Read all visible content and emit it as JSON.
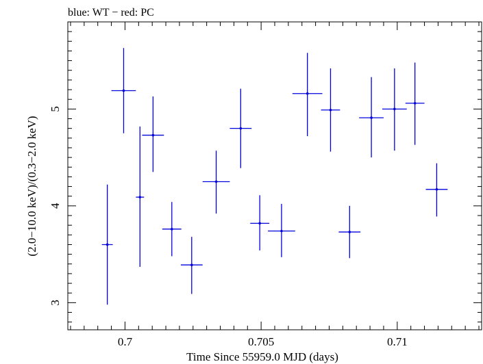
{
  "chart_data": {
    "type": "scatter",
    "title": "blue: WT − red: PC",
    "xlabel": "Time Since 55959.0 MJD (days)",
    "ylabel": "(2.0−10.0 keV)/(0.3−2.0 keV)",
    "xlim": [
      0.6979,
      0.7131
    ],
    "ylim": [
      2.72,
      5.9
    ],
    "xticks": [
      {
        "value": 0.7,
        "label": "0.7"
      },
      {
        "value": 0.705,
        "label": "0.705"
      },
      {
        "value": 0.71,
        "label": "0.71"
      }
    ],
    "yticks": [
      {
        "value": 3,
        "label": "3"
      },
      {
        "value": 4,
        "label": "4"
      },
      {
        "value": 5,
        "label": "5"
      }
    ],
    "grid": false,
    "series": [
      {
        "color": "#0000dd",
        "points": [
          {
            "x": 0.69935,
            "xerr": 0.0002,
            "y": 3.6,
            "ylo": 2.98,
            "yhi": 4.22
          },
          {
            "x": 0.69995,
            "xerr": 0.00045,
            "y": 5.19,
            "ylo": 4.75,
            "yhi": 5.63
          },
          {
            "x": 0.70055,
            "xerr": 0.00015,
            "y": 4.09,
            "ylo": 3.37,
            "yhi": 4.82
          },
          {
            "x": 0.70103,
            "xerr": 0.0004,
            "y": 4.73,
            "ylo": 4.35,
            "yhi": 5.13
          },
          {
            "x": 0.70172,
            "xerr": 0.00035,
            "y": 3.76,
            "ylo": 3.48,
            "yhi": 4.04
          },
          {
            "x": 0.70245,
            "xerr": 0.0004,
            "y": 3.39,
            "ylo": 3.09,
            "yhi": 3.68
          },
          {
            "x": 0.70335,
            "xerr": 0.0005,
            "y": 4.25,
            "ylo": 3.92,
            "yhi": 4.57
          },
          {
            "x": 0.70425,
            "xerr": 0.0004,
            "y": 4.8,
            "ylo": 4.39,
            "yhi": 5.21
          },
          {
            "x": 0.70495,
            "xerr": 0.00035,
            "y": 3.82,
            "ylo": 3.54,
            "yhi": 4.11
          },
          {
            "x": 0.70575,
            "xerr": 0.0005,
            "y": 3.74,
            "ylo": 3.47,
            "yhi": 4.02
          },
          {
            "x": 0.7067,
            "xerr": 0.00055,
            "y": 5.16,
            "ylo": 4.72,
            "yhi": 5.58
          },
          {
            "x": 0.70755,
            "xerr": 0.00035,
            "y": 4.99,
            "ylo": 4.56,
            "yhi": 5.42
          },
          {
            "x": 0.70825,
            "xerr": 0.0004,
            "y": 3.73,
            "ylo": 3.46,
            "yhi": 4.0
          },
          {
            "x": 0.70905,
            "xerr": 0.00045,
            "y": 4.91,
            "ylo": 4.5,
            "yhi": 5.33
          },
          {
            "x": 0.7099,
            "xerr": 0.00045,
            "y": 5.0,
            "ylo": 4.57,
            "yhi": 5.42
          },
          {
            "x": 0.71065,
            "xerr": 0.00035,
            "y": 5.06,
            "ylo": 4.63,
            "yhi": 5.48
          },
          {
            "x": 0.71145,
            "xerr": 0.0004,
            "y": 4.17,
            "ylo": 3.89,
            "yhi": 4.44
          }
        ]
      }
    ]
  }
}
